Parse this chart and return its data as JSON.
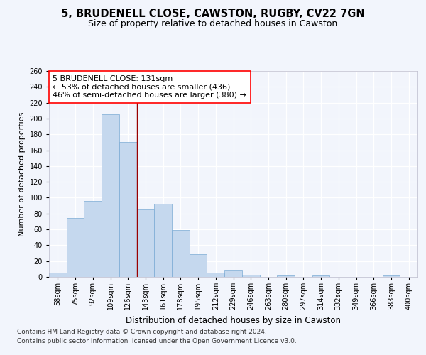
{
  "title_line1": "5, BRUDENELL CLOSE, CAWSTON, RUGBY, CV22 7GN",
  "title_line2": "Size of property relative to detached houses in Cawston",
  "xlabel": "Distribution of detached houses by size in Cawston",
  "ylabel": "Number of detached properties",
  "bar_labels": [
    "58sqm",
    "75sqm",
    "92sqm",
    "109sqm",
    "126sqm",
    "143sqm",
    "161sqm",
    "178sqm",
    "195sqm",
    "212sqm",
    "229sqm",
    "246sqm",
    "263sqm",
    "280sqm",
    "297sqm",
    "314sqm",
    "332sqm",
    "349sqm",
    "366sqm",
    "383sqm",
    "400sqm"
  ],
  "bar_values": [
    5,
    74,
    96,
    205,
    170,
    85,
    92,
    59,
    29,
    5,
    9,
    3,
    0,
    2,
    0,
    2,
    0,
    0,
    0,
    2,
    0
  ],
  "bar_color": "#c5d8ee",
  "bar_edge_color": "#7aaad4",
  "vline_x": 4.5,
  "vline_color": "#990000",
  "annotation_text": "5 BRUDENELL CLOSE: 131sqm\n← 53% of detached houses are smaller (436)\n46% of semi-detached houses are larger (380) →",
  "ylim": [
    0,
    260
  ],
  "yticks": [
    0,
    20,
    40,
    60,
    80,
    100,
    120,
    140,
    160,
    180,
    200,
    220,
    240,
    260
  ],
  "footnote1": "Contains HM Land Registry data © Crown copyright and database right 2024.",
  "footnote2": "Contains public sector information licensed under the Open Government Licence v3.0.",
  "bg_color": "#f2f5fc",
  "plot_bg_color": "#f2f5fc",
  "grid_color": "#ffffff",
  "title_fontsize": 10.5,
  "subtitle_fontsize": 9,
  "xlabel_fontsize": 8.5,
  "ylabel_fontsize": 8,
  "tick_fontsize": 7,
  "annotation_fontsize": 8,
  "footnote_fontsize": 6.5
}
